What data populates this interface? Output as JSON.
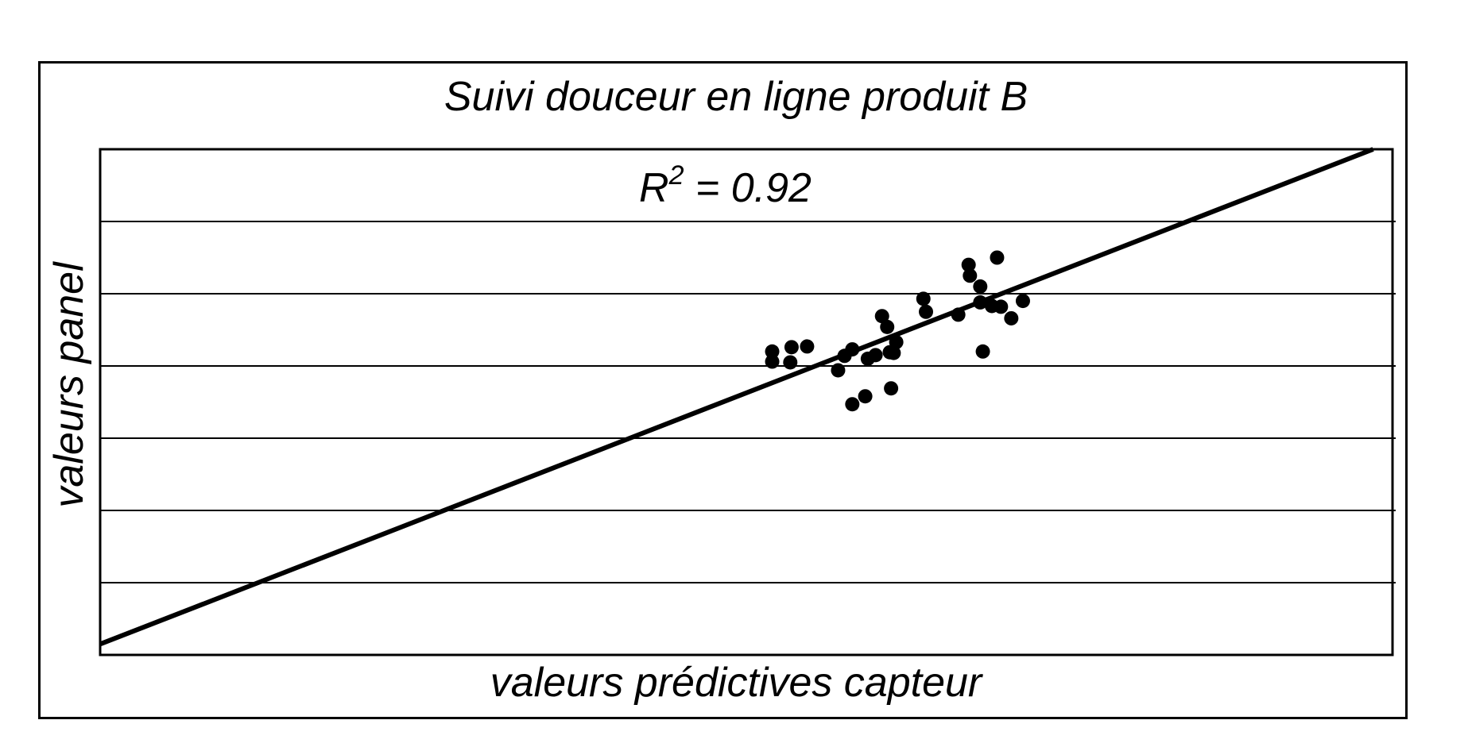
{
  "chart_data": {
    "type": "scatter",
    "title": "Suivi douceur en ligne produit B",
    "xlabel": "valeurs prédictives capteur",
    "ylabel": "valeurs panel",
    "xlim": [
      0,
      1
    ],
    "ylim": [
      0,
      7
    ],
    "grid": true,
    "annotation": {
      "base": "R",
      "exponent": "2",
      "text": " = 0.92"
    },
    "colors": {
      "ink": "#000000",
      "background": "#ffffff"
    },
    "series": [
      {
        "values": [
          {
            "x": 0.52,
            "y": 4.2
          },
          {
            "x": 0.52,
            "y": 4.06
          },
          {
            "x": 0.535,
            "y": 4.26
          },
          {
            "x": 0.534,
            "y": 4.05
          },
          {
            "x": 0.547,
            "y": 4.27
          },
          {
            "x": 0.571,
            "y": 3.94
          },
          {
            "x": 0.576,
            "y": 4.14
          },
          {
            "x": 0.582,
            "y": 4.23
          },
          {
            "x": 0.582,
            "y": 3.47
          },
          {
            "x": 0.592,
            "y": 3.58
          },
          {
            "x": 0.594,
            "y": 4.1
          },
          {
            "x": 0.6,
            "y": 4.15
          },
          {
            "x": 0.605,
            "y": 4.69
          },
          {
            "x": 0.609,
            "y": 4.54
          },
          {
            "x": 0.611,
            "y": 4.19
          },
          {
            "x": 0.612,
            "y": 3.69
          },
          {
            "x": 0.614,
            "y": 4.18
          },
          {
            "x": 0.616,
            "y": 4.33
          },
          {
            "x": 0.637,
            "y": 4.93
          },
          {
            "x": 0.639,
            "y": 4.75
          },
          {
            "x": 0.664,
            "y": 4.71
          },
          {
            "x": 0.672,
            "y": 5.4
          },
          {
            "x": 0.673,
            "y": 5.25
          },
          {
            "x": 0.681,
            "y": 5.1
          },
          {
            "x": 0.683,
            "y": 4.2
          },
          {
            "x": 0.681,
            "y": 4.88
          },
          {
            "x": 0.69,
            "y": 4.83
          },
          {
            "x": 0.694,
            "y": 5.5
          },
          {
            "x": 0.697,
            "y": 4.82
          },
          {
            "x": 0.705,
            "y": 4.66
          },
          {
            "x": 0.714,
            "y": 4.9
          }
        ]
      }
    ],
    "regression_line": {
      "points": [
        {
          "x": 0,
          "y": 0.15
        },
        {
          "x": 0.985,
          "y": 7
        }
      ]
    }
  }
}
